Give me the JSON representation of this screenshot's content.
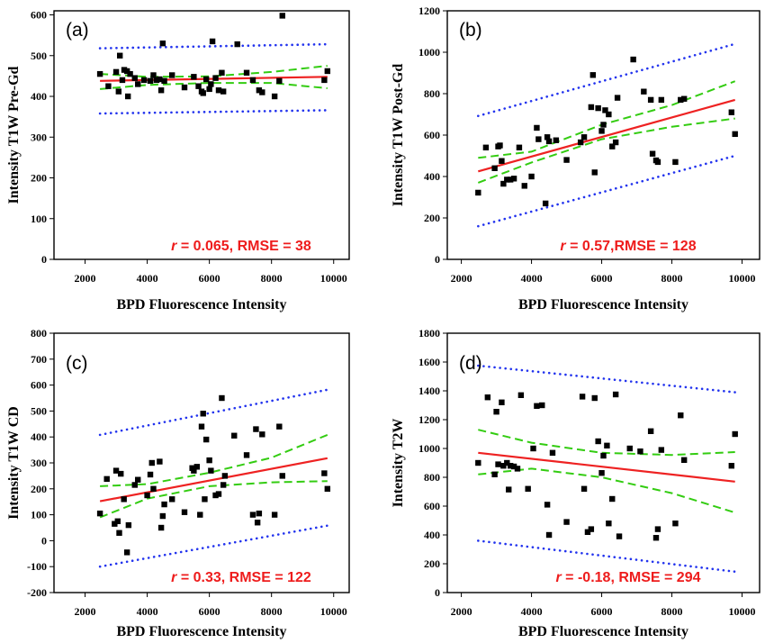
{
  "colors": {
    "points": "#000000",
    "fit_line": "#ee2222",
    "confidence_band": "#33cc11",
    "prediction_band": "#2233ee",
    "stat_text": "#ee1c1c"
  },
  "chart_data": [
    {
      "type": "scatter",
      "panel_label": "(a)",
      "xlabel": "BPD Fluorescence Intensity",
      "ylabel": "Intensity T1W Pre-Gd",
      "xlim": [
        1000,
        10500
      ],
      "ylim": [
        0,
        610
      ],
      "xticks": [
        2000,
        4000,
        6000,
        8000,
        10000
      ],
      "yticks": [
        0,
        100,
        200,
        300,
        400,
        500,
        600
      ],
      "stat_prefix": "r",
      "stat_text": " = 0.065, RMSE = 38",
      "points": [
        [
          2480,
          455
        ],
        [
          2750,
          425
        ],
        [
          3000,
          460
        ],
        [
          3080,
          412
        ],
        [
          3120,
          500
        ],
        [
          3200,
          440
        ],
        [
          3260,
          465
        ],
        [
          3350,
          462
        ],
        [
          3380,
          400
        ],
        [
          3450,
          455
        ],
        [
          3600,
          445
        ],
        [
          3700,
          430
        ],
        [
          3900,
          440
        ],
        [
          4100,
          438
        ],
        [
          4200,
          452
        ],
        [
          4300,
          440
        ],
        [
          4400,
          442
        ],
        [
          4450,
          415
        ],
        [
          4500,
          530
        ],
        [
          4550,
          438
        ],
        [
          4800,
          452
        ],
        [
          5200,
          422
        ],
        [
          5500,
          448
        ],
        [
          5650,
          425
        ],
        [
          5750,
          412
        ],
        [
          5800,
          408
        ],
        [
          5900,
          442
        ],
        [
          6000,
          418
        ],
        [
          6050,
          430
        ],
        [
          6100,
          535
        ],
        [
          6200,
          445
        ],
        [
          6300,
          415
        ],
        [
          6400,
          458
        ],
        [
          6450,
          412
        ],
        [
          6900,
          528
        ],
        [
          7200,
          458
        ],
        [
          7400,
          440
        ],
        [
          7600,
          415
        ],
        [
          7700,
          410
        ],
        [
          8100,
          400
        ],
        [
          8250,
          438
        ],
        [
          8350,
          598
        ],
        [
          9700,
          440
        ],
        [
          9800,
          462
        ]
      ],
      "fit": [
        [
          2480,
          438
        ],
        [
          9800,
          448
        ]
      ],
      "confidence_upper": [
        [
          2480,
          455
        ],
        [
          4000,
          448
        ],
        [
          6000,
          449
        ],
        [
          8000,
          460
        ],
        [
          9800,
          475
        ]
      ],
      "confidence_lower": [
        [
          2480,
          418
        ],
        [
          4000,
          428
        ],
        [
          6000,
          433
        ],
        [
          8000,
          433
        ],
        [
          9800,
          420
        ]
      ],
      "prediction_upper": [
        [
          2480,
          518
        ],
        [
          9800,
          528
        ]
      ],
      "prediction_lower": [
        [
          2480,
          358
        ],
        [
          9800,
          366
        ]
      ]
    },
    {
      "type": "scatter",
      "panel_label": "(b)",
      "xlabel": "BPD Fluorescence Intensity",
      "ylabel": "Intensity T1W Post-Gd",
      "xlim": [
        1600,
        10500
      ],
      "ylim": [
        0,
        1200
      ],
      "xticks": [
        2000,
        4000,
        6000,
        8000,
        10000
      ],
      "yticks": [
        0,
        200,
        400,
        600,
        800,
        1000,
        1200
      ],
      "stat_prefix": "r",
      "stat_text": " = 0.57,RMSE = 128",
      "points": [
        [
          2480,
          322
        ],
        [
          2700,
          540
        ],
        [
          2950,
          440
        ],
        [
          3050,
          545
        ],
        [
          3100,
          550
        ],
        [
          3150,
          475
        ],
        [
          3200,
          365
        ],
        [
          3300,
          385
        ],
        [
          3400,
          385
        ],
        [
          3500,
          390
        ],
        [
          3650,
          540
        ],
        [
          3800,
          355
        ],
        [
          4000,
          400
        ],
        [
          4150,
          635
        ],
        [
          4200,
          580
        ],
        [
          4400,
          270
        ],
        [
          4450,
          590
        ],
        [
          4500,
          570
        ],
        [
          4700,
          575
        ],
        [
          5000,
          480
        ],
        [
          5400,
          565
        ],
        [
          5500,
          590
        ],
        [
          5700,
          735
        ],
        [
          5750,
          890
        ],
        [
          5800,
          420
        ],
        [
          5900,
          730
        ],
        [
          6000,
          620
        ],
        [
          6050,
          650
        ],
        [
          6100,
          720
        ],
        [
          6200,
          700
        ],
        [
          6300,
          545
        ],
        [
          6400,
          565
        ],
        [
          6450,
          780
        ],
        [
          6900,
          965
        ],
        [
          7200,
          810
        ],
        [
          7400,
          770
        ],
        [
          7450,
          510
        ],
        [
          7550,
          478
        ],
        [
          7600,
          470
        ],
        [
          7700,
          770
        ],
        [
          8100,
          470
        ],
        [
          8250,
          770
        ],
        [
          8350,
          775
        ],
        [
          9700,
          710
        ],
        [
          9800,
          605
        ]
      ],
      "fit": [
        [
          2480,
          425
        ],
        [
          9800,
          770
        ]
      ],
      "confidence_upper": [
        [
          2480,
          490
        ],
        [
          4000,
          520
        ],
        [
          6000,
          650
        ],
        [
          8000,
          745
        ],
        [
          9800,
          860
        ]
      ],
      "confidence_lower": [
        [
          2480,
          370
        ],
        [
          4000,
          468
        ],
        [
          6000,
          580
        ],
        [
          8000,
          640
        ],
        [
          9800,
          680
        ]
      ],
      "prediction_upper": [
        [
          2480,
          692
        ],
        [
          9800,
          1040
        ]
      ],
      "prediction_lower": [
        [
          2480,
          160
        ],
        [
          9800,
          500
        ]
      ]
    },
    {
      "type": "scatter",
      "panel_label": "(c)",
      "xlabel": "BPD Fluorescence Intensity",
      "ylabel": "Intensity T1W CD",
      "xlim": [
        1000,
        10500
      ],
      "ylim": [
        -200,
        800
      ],
      "xticks": [
        2000,
        4000,
        6000,
        8000,
        10000
      ],
      "yticks": [
        -200,
        -100,
        0,
        100,
        200,
        300,
        400,
        500,
        600,
        700,
        800
      ],
      "stat_prefix": "r",
      "stat_text": " = 0.33, RMSE = 122",
      "points": [
        [
          2480,
          105
        ],
        [
          2700,
          238
        ],
        [
          2950,
          65
        ],
        [
          3000,
          270
        ],
        [
          3050,
          75
        ],
        [
          3100,
          30
        ],
        [
          3150,
          258
        ],
        [
          3250,
          160
        ],
        [
          3350,
          -45
        ],
        [
          3400,
          60
        ],
        [
          3600,
          215
        ],
        [
          3700,
          235
        ],
        [
          4000,
          175
        ],
        [
          4100,
          255
        ],
        [
          4150,
          300
        ],
        [
          4200,
          200
        ],
        [
          4400,
          305
        ],
        [
          4450,
          50
        ],
        [
          4500,
          95
        ],
        [
          4550,
          140
        ],
        [
          4800,
          160
        ],
        [
          5200,
          110
        ],
        [
          5450,
          280
        ],
        [
          5500,
          270
        ],
        [
          5600,
          285
        ],
        [
          5700,
          100
        ],
        [
          5750,
          440
        ],
        [
          5800,
          490
        ],
        [
          5850,
          160
        ],
        [
          5900,
          390
        ],
        [
          6000,
          310
        ],
        [
          6050,
          270
        ],
        [
          6200,
          175
        ],
        [
          6300,
          180
        ],
        [
          6400,
          550
        ],
        [
          6450,
          215
        ],
        [
          6500,
          250
        ],
        [
          6800,
          405
        ],
        [
          7200,
          330
        ],
        [
          7400,
          100
        ],
        [
          7500,
          430
        ],
        [
          7550,
          70
        ],
        [
          7600,
          105
        ],
        [
          7700,
          410
        ],
        [
          8100,
          100
        ],
        [
          8250,
          440
        ],
        [
          8350,
          250
        ],
        [
          9700,
          260
        ],
        [
          9800,
          200
        ]
      ],
      "fit": [
        [
          2480,
          152
        ],
        [
          9800,
          318
        ]
      ],
      "confidence_upper": [
        [
          2480,
          210
        ],
        [
          4000,
          218
        ],
        [
          6000,
          262
        ],
        [
          8000,
          320
        ],
        [
          9800,
          408
        ]
      ],
      "confidence_lower": [
        [
          2480,
          90
        ],
        [
          4000,
          162
        ],
        [
          6000,
          210
        ],
        [
          8000,
          225
        ],
        [
          9800,
          230
        ]
      ],
      "prediction_upper": [
        [
          2480,
          408
        ],
        [
          9800,
          582
        ]
      ],
      "prediction_lower": [
        [
          2480,
          -100
        ],
        [
          9800,
          58
        ]
      ]
    },
    {
      "type": "scatter",
      "panel_label": "(d)",
      "xlabel": "BPD Fluorescence Intensity",
      "ylabel": "Intensity T2W",
      "xlim": [
        1600,
        10500
      ],
      "ylim": [
        0,
        1800
      ],
      "xticks": [
        2000,
        4000,
        6000,
        8000,
        10000
      ],
      "yticks": [
        0,
        200,
        400,
        600,
        800,
        1000,
        1200,
        1400,
        1600,
        1800
      ],
      "stat_prefix": "r",
      "stat_text": " = -0.18, RMSE = 294",
      "points": [
        [
          2480,
          900
        ],
        [
          2750,
          1355
        ],
        [
          2950,
          820
        ],
        [
          3000,
          1255
        ],
        [
          3050,
          890
        ],
        [
          3150,
          1320
        ],
        [
          3200,
          880
        ],
        [
          3300,
          900
        ],
        [
          3350,
          715
        ],
        [
          3400,
          880
        ],
        [
          3500,
          875
        ],
        [
          3600,
          860
        ],
        [
          3700,
          1370
        ],
        [
          3900,
          720
        ],
        [
          4050,
          1000
        ],
        [
          4150,
          1295
        ],
        [
          4300,
          1300
        ],
        [
          4450,
          610
        ],
        [
          4500,
          400
        ],
        [
          4600,
          970
        ],
        [
          5000,
          490
        ],
        [
          5450,
          1360
        ],
        [
          5500,
          720
        ],
        [
          5600,
          420
        ],
        [
          5700,
          440
        ],
        [
          5800,
          1350
        ],
        [
          5900,
          1050
        ],
        [
          6000,
          830
        ],
        [
          6050,
          950
        ],
        [
          6150,
          1020
        ],
        [
          6200,
          480
        ],
        [
          6300,
          650
        ],
        [
          6400,
          1375
        ],
        [
          6500,
          390
        ],
        [
          6800,
          1000
        ],
        [
          7100,
          980
        ],
        [
          7400,
          1120
        ],
        [
          7550,
          380
        ],
        [
          7600,
          440
        ],
        [
          7700,
          990
        ],
        [
          8100,
          480
        ],
        [
          8250,
          1230
        ],
        [
          8350,
          920
        ],
        [
          9700,
          880
        ],
        [
          9800,
          1100
        ]
      ],
      "fit": [
        [
          2480,
          970
        ],
        [
          9800,
          770
        ]
      ],
      "confidence_upper": [
        [
          2480,
          1130
        ],
        [
          4000,
          1040
        ],
        [
          6000,
          970
        ],
        [
          8000,
          955
        ],
        [
          9800,
          975
        ]
      ],
      "confidence_lower": [
        [
          2480,
          820
        ],
        [
          4000,
          860
        ],
        [
          6000,
          800
        ],
        [
          8000,
          690
        ],
        [
          9800,
          555
        ]
      ],
      "prediction_upper": [
        [
          2480,
          1575
        ],
        [
          9800,
          1390
        ]
      ],
      "prediction_lower": [
        [
          2480,
          360
        ],
        [
          9800,
          145
        ]
      ]
    }
  ]
}
